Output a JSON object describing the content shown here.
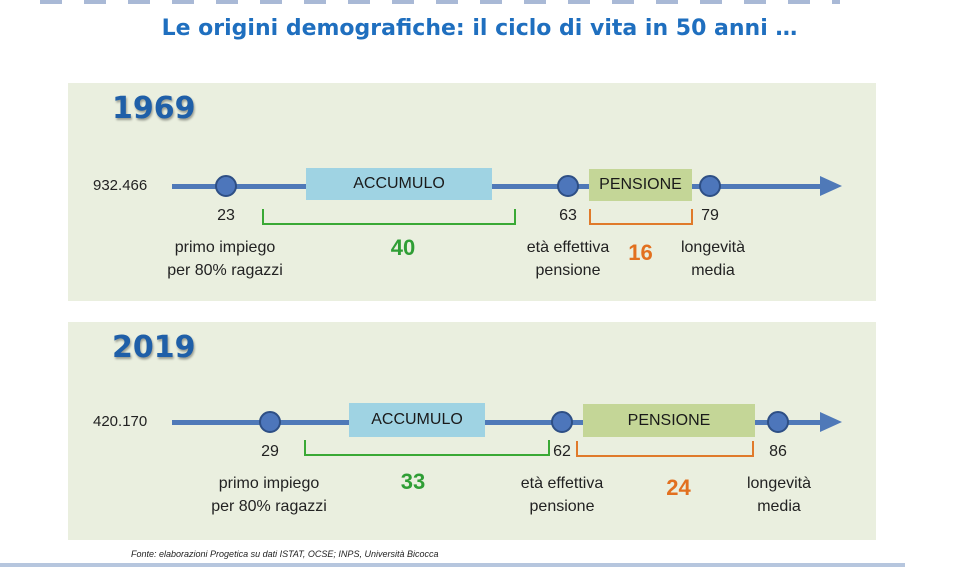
{
  "title": "Le origini demografiche: il ciclo di vita in 50 anni …",
  "source": "Fonte: elaborazioni Progetica su dati ISTAT, OCSE; INPS, Università Bicocca",
  "colors": {
    "title": "#1f6fbf",
    "timeline": "#4f79b8",
    "accumulo": "#9fd3e3",
    "pensione": "#c4d697",
    "accumulo_years": "#2f9e35",
    "pensione_years": "#e2701f"
  },
  "panels": [
    {
      "year": "1969",
      "population": "932.466",
      "accumulo_label": "ACCUMULO",
      "pensione_label": "PENSIONE",
      "start_age": "23",
      "retirement_age": "63",
      "longevity_age": "79",
      "start_label_1": "primo impiego",
      "start_label_2": "per 80% ragazzi",
      "retirement_label_1": "età effettiva",
      "retirement_label_2": "pensione",
      "longevity_label_1": "longevità",
      "longevity_label_2": "media",
      "accumulo_years": "40",
      "pensione_years": "16"
    },
    {
      "year": "2019",
      "population": "420.170",
      "accumulo_label": "ACCUMULO",
      "pensione_label": "PENSIONE",
      "start_age": "29",
      "retirement_age": "62",
      "longevity_age": "86",
      "start_label_1": "primo impiego",
      "start_label_2": "per 80% ragazzi",
      "retirement_label_1": "età effettiva",
      "retirement_label_2": "pensione",
      "longevity_label_1": "longevità",
      "longevity_label_2": "media",
      "accumulo_years": "33",
      "pensione_years": "24"
    }
  ]
}
